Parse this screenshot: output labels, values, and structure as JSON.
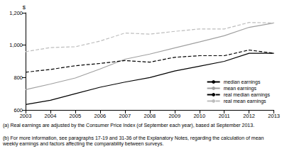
{
  "chart_data": {
    "type": "line",
    "y_label": "$",
    "categories": [
      "2003",
      "2004",
      "2005",
      "2006",
      "2007",
      "2008",
      "2009",
      "2010",
      "2011",
      "2012",
      "2013"
    ],
    "series": [
      {
        "name": "median earnings",
        "color": "#000000",
        "line_style": "solid",
        "values": [
          633,
          660,
          700,
          740,
          772,
          800,
          840,
          870,
          900,
          950,
          950
        ]
      },
      {
        "name": "mean earnings",
        "color": "#a0a0a0",
        "line_style": "solid",
        "values": [
          725,
          760,
          797,
          853,
          913,
          945,
          983,
          1020,
          1058,
          1110,
          1137
        ]
      },
      {
        "name": "real median earnings",
        "color": "#000000",
        "line_style": "dashed",
        "values": [
          833,
          850,
          873,
          887,
          905,
          895,
          925,
          935,
          935,
          970,
          950
        ]
      },
      {
        "name": "real mean earnings",
        "color": "#bdbdbd",
        "line_style": "dashed",
        "values": [
          960,
          985,
          990,
          1025,
          1075,
          1068,
          1085,
          1100,
          1100,
          1140,
          1137
        ]
      }
    ],
    "ylim": [
      600,
      1200
    ],
    "yticks": [
      600,
      800,
      1000,
      1200
    ],
    "grid": false,
    "legend": "bottom-right",
    "notes": [
      "(a) Real earnings are adjusted by the Consumer Price Index (of September each year), based at September 2013.",
      "(b) For more information, see paragraphs 17-19 and 31-36 of the Explanatory Notes, regarding the calculation of mean weekly earnings and factors affecting the comparability between surveys."
    ]
  }
}
